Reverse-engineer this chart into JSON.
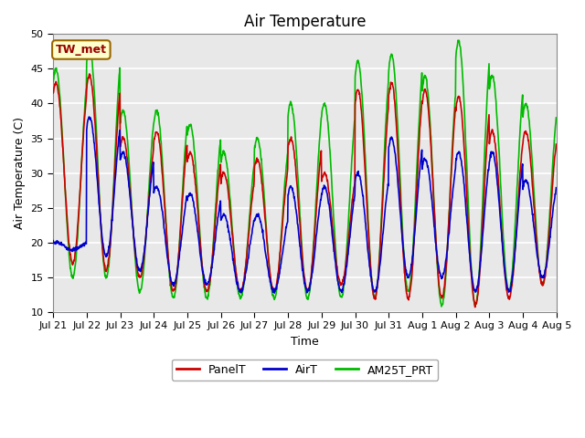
{
  "title": "Air Temperature",
  "ylabel": "Air Temperature (C)",
  "xlabel": "Time",
  "annotation": "TW_met",
  "ylim": [
    10,
    50
  ],
  "xlim": [
    0,
    360
  ],
  "background_color": "#e8e8e8",
  "grid_color": "white",
  "series": {
    "PanelT": {
      "color": "#cc0000",
      "lw": 1.2
    },
    "AirT": {
      "color": "#0000cc",
      "lw": 1.2
    },
    "AM25T_PRT": {
      "color": "#00bb00",
      "lw": 1.2
    }
  },
  "xtick_labels": [
    "Jul 21",
    "Jul 22",
    "Jul 23",
    "Jul 24",
    "Jul 25",
    "Jul 26",
    "Jul 27",
    "Jul 28",
    "Jul 29",
    "Jul 30",
    "Jul 31",
    "Aug 1",
    "Aug 2",
    "Aug 3",
    "Aug 4",
    "Aug 5"
  ],
  "ytick_vals": [
    10,
    15,
    20,
    25,
    30,
    35,
    40,
    45,
    50
  ],
  "title_fontsize": 12,
  "axis_label_fontsize": 9,
  "tick_fontsize": 8,
  "legend_fontsize": 9,
  "panel_max": [
    43,
    44,
    35,
    36,
    33,
    30,
    32,
    35,
    30,
    42,
    43,
    42,
    41,
    36,
    36
  ],
  "panel_min": [
    17,
    16,
    15,
    13,
    13,
    13,
    13,
    13,
    14,
    12,
    12,
    12,
    11,
    12,
    14
  ],
  "air_max": [
    20,
    38,
    33,
    28,
    27,
    24,
    24,
    28,
    28,
    30,
    35,
    32,
    33,
    33,
    29
  ],
  "air_min": [
    19,
    18,
    16,
    14,
    14,
    13,
    13,
    13,
    13,
    13,
    15,
    15,
    13,
    13,
    15
  ],
  "am_max": [
    45,
    48,
    39,
    39,
    37,
    33,
    35,
    40,
    40,
    46,
    47,
    44,
    49,
    44,
    40
  ],
  "am_min": [
    15,
    15,
    13,
    12,
    12,
    12,
    12,
    12,
    12,
    12,
    13,
    11,
    11,
    13,
    14
  ]
}
